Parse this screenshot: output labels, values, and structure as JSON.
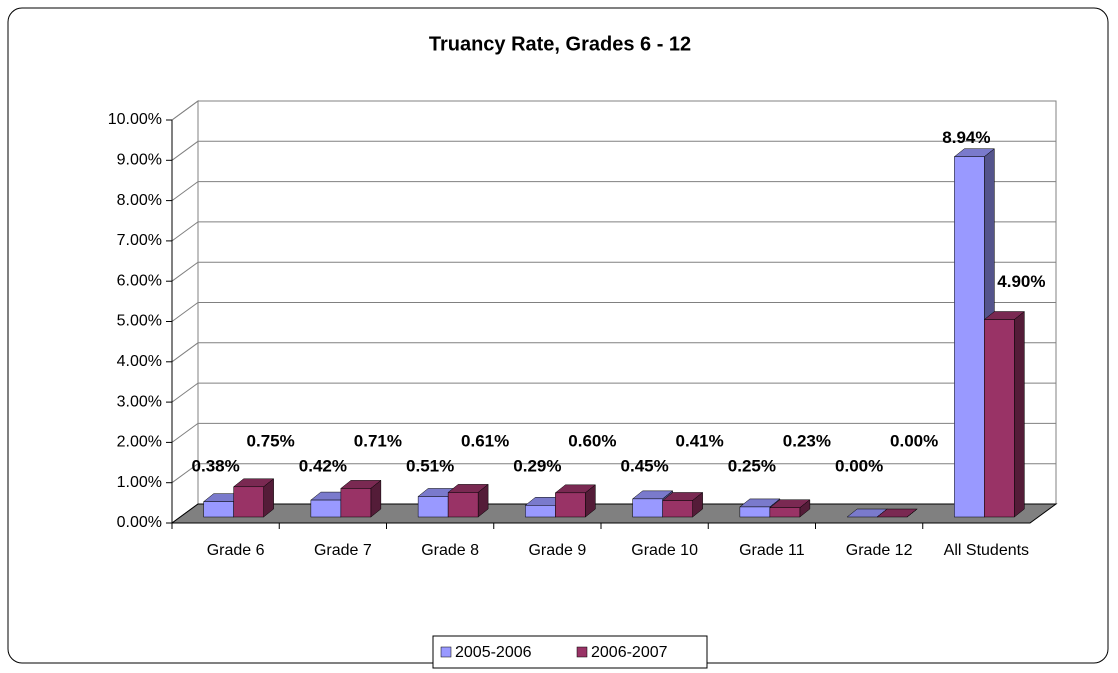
{
  "chart_data": {
    "type": "bar3d",
    "title": "Truancy Rate, Grades 6 - 12",
    "categories": [
      "Grade 6",
      "Grade 7",
      "Grade 8",
      "Grade 9",
      "Grade 10",
      "Grade 11",
      "Grade 12",
      "All Students"
    ],
    "series": [
      {
        "name": "2005-2006",
        "color": "#9999ff",
        "values": [
          0.38,
          0.42,
          0.51,
          0.29,
          0.45,
          0.25,
          0.0,
          8.94
        ],
        "value_labels": [
          "0.38%",
          "0.42%",
          "0.51%",
          "0.29%",
          "0.45%",
          "0.25%",
          "0.00%",
          "8.94%"
        ]
      },
      {
        "name": "2006-2007",
        "color": "#993366",
        "values": [
          0.75,
          0.71,
          0.61,
          0.6,
          0.41,
          0.23,
          0.0,
          4.9
        ],
        "value_labels": [
          "0.75%",
          "0.71%",
          "0.61%",
          "0.60%",
          "0.41%",
          "0.23%",
          "0.00%",
          "4.90%"
        ]
      }
    ],
    "ylim": [
      0,
      10
    ],
    "yticks": [
      {
        "value": 0,
        "label": "0.00%"
      },
      {
        "value": 1,
        "label": "1.00%"
      },
      {
        "value": 2,
        "label": "2.00%"
      },
      {
        "value": 3,
        "label": "3.00%"
      },
      {
        "value": 4,
        "label": "4.00%"
      },
      {
        "value": 5,
        "label": "5.00%"
      },
      {
        "value": 6,
        "label": "6.00%"
      },
      {
        "value": 7,
        "label": "7.00%"
      },
      {
        "value": 8,
        "label": "8.00%"
      },
      {
        "value": 9,
        "label": "9.00%"
      },
      {
        "value": 10,
        "label": "10.00%"
      }
    ],
    "grid": true,
    "legend": "bottom"
  }
}
